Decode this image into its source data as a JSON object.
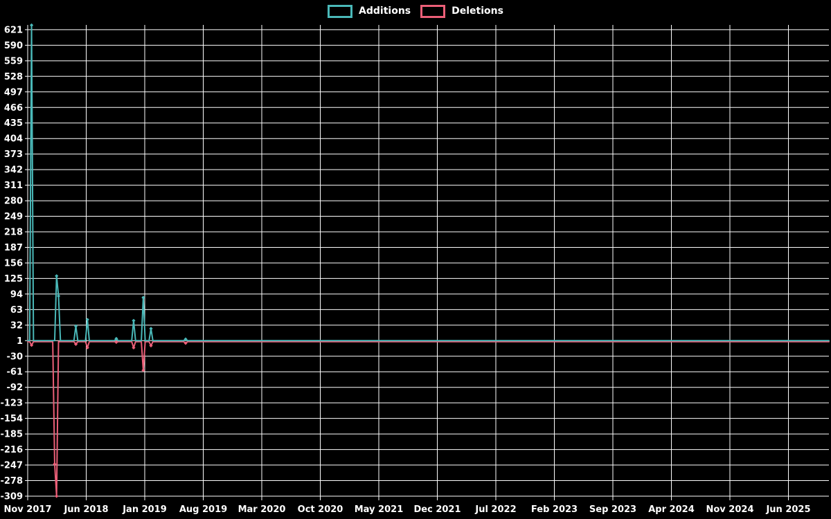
{
  "page": {
    "background_color": "#000000",
    "text_color": "#ffffff",
    "grid_color": "#ffffff"
  },
  "legend": {
    "position": "top-center",
    "items": [
      {
        "label": "Additions",
        "color": "#4ab9b9"
      },
      {
        "label": "Deletions",
        "color": "#ec5f78"
      }
    ]
  },
  "chart_data": {
    "type": "line",
    "title": "",
    "xlabel": "",
    "ylabel": "",
    "legend_position": "top-center",
    "grid": true,
    "x_axis": {
      "labels": [
        "Nov 2017",
        "Jun 2018",
        "Jan 2019",
        "Aug 2019",
        "Mar 2020",
        "Oct 2020",
        "May 2021",
        "Dec 2021",
        "Jul 2022",
        "Feb 2023",
        "Sep 2023",
        "Apr 2024",
        "Nov 2024",
        "Jun 2025"
      ],
      "unit": "weeks",
      "weeks_total": 416,
      "weeks_per_label_interval": 30.43
    },
    "y_axis": {
      "ticks": [
        621,
        590,
        559,
        528,
        497,
        466,
        435,
        404,
        373,
        342,
        311,
        280,
        249,
        218,
        187,
        156,
        125,
        94,
        63,
        32,
        1,
        -30,
        -61,
        -92,
        -123,
        -154,
        -185,
        -216,
        -247,
        -278,
        -309
      ],
      "tick_step": 31,
      "min": -313,
      "max": 634
    },
    "series": [
      {
        "name": "Deletions",
        "color": "#ec5f78",
        "baseline": -1,
        "points": [
          {
            "week": 2,
            "value": -8
          },
          {
            "week": 14,
            "value": -245
          },
          {
            "week": 15,
            "value": -309
          },
          {
            "week": 25,
            "value": -6
          },
          {
            "week": 31,
            "value": -13
          },
          {
            "week": 46,
            "value": -2
          },
          {
            "week": 55,
            "value": -13
          },
          {
            "week": 60,
            "value": -58
          },
          {
            "week": 64,
            "value": -9
          },
          {
            "week": 82,
            "value": -4
          }
        ]
      },
      {
        "name": "Additions",
        "color": "#4ab9b9",
        "baseline": 1,
        "points": [
          {
            "week": 2,
            "value": 630
          },
          {
            "week": 15,
            "value": 130
          },
          {
            "week": 16,
            "value": 90
          },
          {
            "week": 25,
            "value": 30
          },
          {
            "week": 31,
            "value": 43
          },
          {
            "week": 46,
            "value": 5
          },
          {
            "week": 55,
            "value": 41
          },
          {
            "week": 60,
            "value": 87
          },
          {
            "week": 64,
            "value": 25
          },
          {
            "week": 82,
            "value": 4
          }
        ]
      }
    ]
  }
}
